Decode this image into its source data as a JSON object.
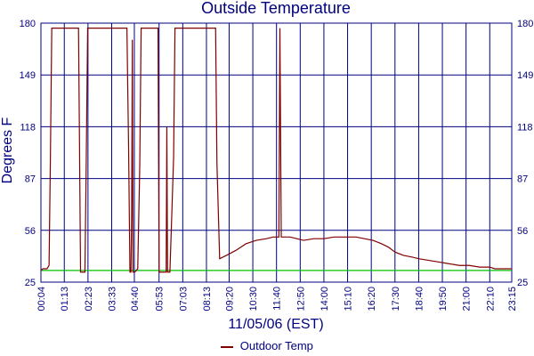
{
  "chart_data": {
    "type": "line",
    "title": "Outside Temperature",
    "xlabel": "11/05/06 (EST)",
    "ylabel": "Degrees F",
    "ylim": [
      25,
      180
    ],
    "xlim_minutes": [
      4,
      1395
    ],
    "y_ticks": [
      25,
      56,
      87,
      118,
      149,
      180
    ],
    "x_ticks": [
      {
        "label": "00:04",
        "min": 4
      },
      {
        "label": "01:13",
        "min": 73
      },
      {
        "label": "02:23",
        "min": 143
      },
      {
        "label": "03:33",
        "min": 213
      },
      {
        "label": "04:40",
        "min": 280
      },
      {
        "label": "05:53",
        "min": 353
      },
      {
        "label": "07:03",
        "min": 423
      },
      {
        "label": "08:13",
        "min": 493
      },
      {
        "label": "09:20",
        "min": 560
      },
      {
        "label": "10:30",
        "min": 630
      },
      {
        "label": "11:40",
        "min": 700
      },
      {
        "label": "12:50",
        "min": 770
      },
      {
        "label": "14:00",
        "min": 840
      },
      {
        "label": "15:10",
        "min": 910
      },
      {
        "label": "16:20",
        "min": 980
      },
      {
        "label": "17:30",
        "min": 1050
      },
      {
        "label": "18:40",
        "min": 1120
      },
      {
        "label": "19:50",
        "min": 1190
      },
      {
        "label": "21:00",
        "min": 1260
      },
      {
        "label": "22:10",
        "min": 1330
      },
      {
        "label": "23:15",
        "min": 1395
      }
    ],
    "grid": true,
    "legend_position": "bottom-center",
    "series": [
      {
        "name": "Outdoor Temp",
        "color": "#800000",
        "points": [
          [
            4,
            32
          ],
          [
            10,
            33
          ],
          [
            22,
            33
          ],
          [
            28,
            35
          ],
          [
            32,
            100
          ],
          [
            36,
            177
          ],
          [
            115,
            177
          ],
          [
            118,
            107
          ],
          [
            121,
            31
          ],
          [
            134,
            31
          ],
          [
            138,
            100
          ],
          [
            142,
            177
          ],
          [
            258,
            177
          ],
          [
            263,
            105
          ],
          [
            267,
            31
          ],
          [
            270,
            31
          ],
          [
            272,
            66
          ],
          [
            274,
            170
          ],
          [
            276,
            31
          ],
          [
            281,
            31
          ],
          [
            290,
            33
          ],
          [
            296,
            95
          ],
          [
            300,
            177
          ],
          [
            350,
            177
          ],
          [
            353,
            31
          ],
          [
            374,
            31
          ],
          [
            376,
            118
          ],
          [
            378,
            31
          ],
          [
            385,
            31
          ],
          [
            391,
            68
          ],
          [
            396,
            100
          ],
          [
            400,
            177
          ],
          [
            520,
            177
          ],
          [
            524,
            96
          ],
          [
            532,
            39
          ],
          [
            552,
            41
          ],
          [
            580,
            44
          ],
          [
            610,
            48
          ],
          [
            640,
            50
          ],
          [
            670,
            51
          ],
          [
            690,
            52
          ],
          [
            707,
            52
          ],
          [
            710,
            177
          ],
          [
            714,
            52
          ],
          [
            740,
            52
          ],
          [
            760,
            51
          ],
          [
            780,
            50
          ],
          [
            810,
            51
          ],
          [
            840,
            51
          ],
          [
            870,
            52
          ],
          [
            910,
            52
          ],
          [
            935,
            52
          ],
          [
            960,
            51
          ],
          [
            985,
            50
          ],
          [
            1010,
            48
          ],
          [
            1030,
            46
          ],
          [
            1050,
            43
          ],
          [
            1075,
            41
          ],
          [
            1100,
            40
          ],
          [
            1120,
            39
          ],
          [
            1150,
            38
          ],
          [
            1180,
            37
          ],
          [
            1210,
            36
          ],
          [
            1240,
            35
          ],
          [
            1270,
            35
          ],
          [
            1300,
            34
          ],
          [
            1330,
            34
          ],
          [
            1345,
            33
          ],
          [
            1360,
            33
          ],
          [
            1395,
            33
          ]
        ]
      },
      {
        "name": "",
        "color": "#00c000",
        "points": [
          [
            4,
            32
          ],
          [
            1395,
            32
          ]
        ]
      }
    ]
  }
}
